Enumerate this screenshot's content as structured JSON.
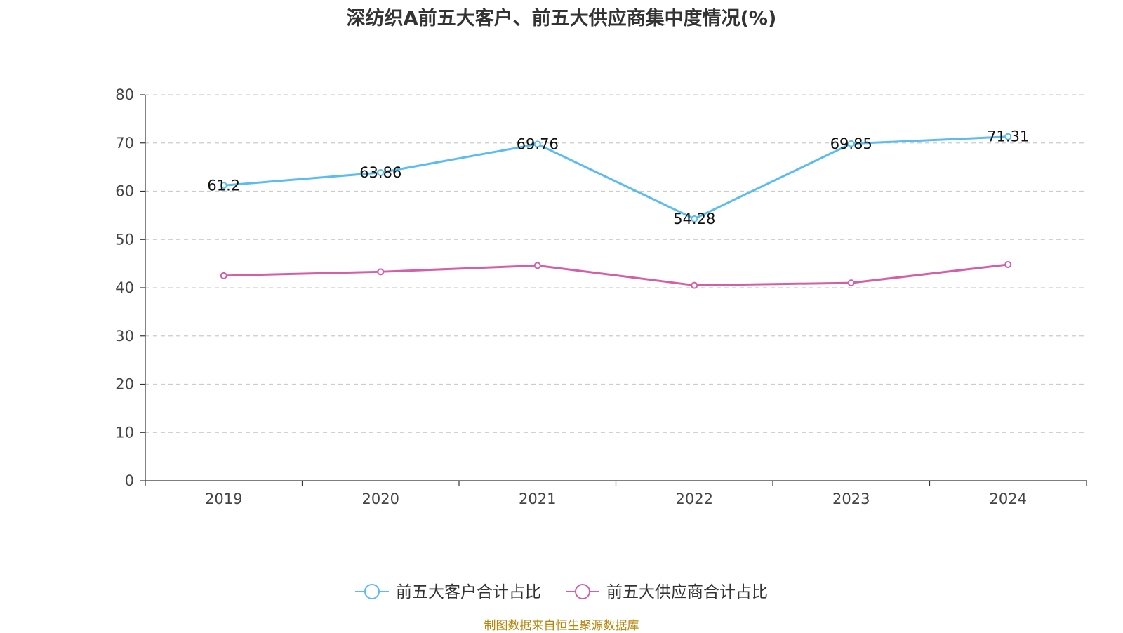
{
  "chart_data": {
    "type": "line",
    "title": "深纺织A前五大客户、前五大供应商集中度情况(%)",
    "xlabel": "",
    "ylabel": "",
    "ylim": [
      0,
      80
    ],
    "yticks": [
      0,
      10,
      20,
      30,
      40,
      50,
      60,
      70,
      80
    ],
    "grid": "horizontal dashed",
    "legend_position": "bottom",
    "categories": [
      "2019",
      "2020",
      "2021",
      "2022",
      "2023",
      "2024"
    ],
    "series": [
      {
        "name": "前五大客户合计占比",
        "color": "#5bbcf0",
        "values": [
          61.2,
          63.86,
          69.76,
          54.28,
          69.85,
          71.31
        ],
        "labels": [
          "61.2",
          "63.86",
          "69.76",
          "54.28",
          "69.85",
          "71.31"
        ],
        "show_labels": true
      },
      {
        "name": "前五大供应商合计占比",
        "color": "#d45fa8",
        "values": [
          42.5,
          43.3,
          44.6,
          40.5,
          41.0,
          44.8
        ],
        "show_labels": false
      }
    ]
  },
  "footer": {
    "source": "制图数据来自恒生聚源数据库"
  }
}
